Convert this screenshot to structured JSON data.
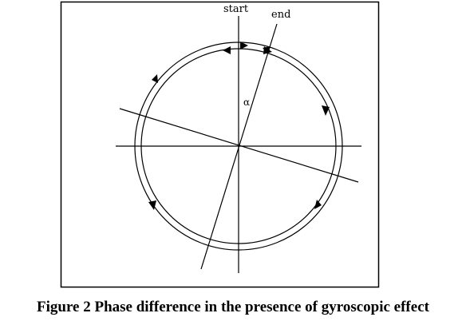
{
  "diagram": {
    "labels": {
      "start": "start",
      "end": "end",
      "angle": "α"
    }
  },
  "caption": "Figure 2 Phase difference in the presence of gyroscopic effect"
}
